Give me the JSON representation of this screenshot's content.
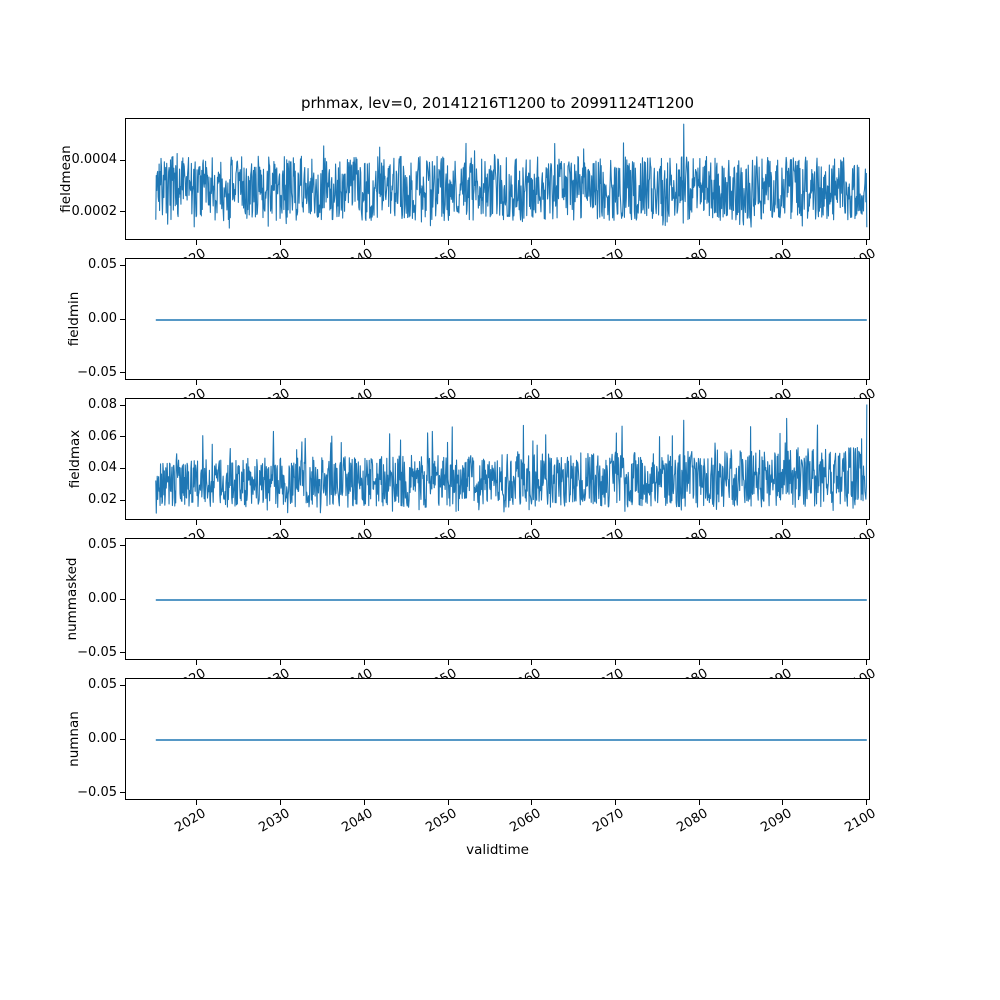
{
  "figure": {
    "background": "#ffffff",
    "line_color": "#1f77b4",
    "axis_color": "#000000"
  },
  "chart_data": {
    "type": "line",
    "title": "prhmax, lev=0, 20141216T1200 to 20991124T1200",
    "xlabel": "validtime",
    "x_range": [
      2014.96,
      2099.9
    ],
    "xlim": [
      2011.4,
      2100.4
    ],
    "xticks": [
      2020,
      2030,
      2040,
      2050,
      2060,
      2070,
      2080,
      2090,
      2100
    ],
    "xtick_labels": [
      "2020",
      "2030",
      "2040",
      "2050",
      "2060",
      "2070",
      "2080",
      "2090",
      "2100"
    ],
    "xtick_rotation": 30,
    "grid": false,
    "legend": false,
    "subplots": [
      {
        "ylabel": "fieldmean",
        "ylim": [
          9e-05,
          0.000565
        ],
        "yticks": [
          0.0002,
          0.0004
        ],
        "ytick_labels": [
          "0.0002",
          "0.0004"
        ],
        "series": {
          "kind": "noise",
          "n": 1500,
          "seed": 7,
          "band_low": 0.00017,
          "band_high": 0.00042,
          "band_high_end": 0.00042,
          "spike_prob": 0.004,
          "spike_high": 0.00048,
          "spike_high_end": 0.0005,
          "dip_prob": 0.012,
          "dip_low": 0.00014,
          "extra_peaks": [
            [
              2078,
              0.000545
            ],
            [
              2052,
              0.00047
            ],
            [
              2035,
              0.00046
            ]
          ],
          "end_value": null,
          "summary": "dense noisy signal oscillating roughly between 0.00015 and 0.00045, occasional peaks, tallest ~0.00055 near 2078"
        }
      },
      {
        "ylabel": "fieldmin",
        "ylim": [
          -0.0565,
          0.0565
        ],
        "yticks": [
          -0.05,
          0,
          0.05
        ],
        "ytick_labels": [
          "−0.05",
          "0.00",
          "0.05"
        ],
        "series": {
          "kind": "constant",
          "value": 0,
          "summary": "constant 0.00 across full time range 2015-2100"
        }
      },
      {
        "ylabel": "fieldmax",
        "ylim": [
          0.0074,
          0.0845
        ],
        "yticks": [
          0.02,
          0.04,
          0.06,
          0.08
        ],
        "ytick_labels": [
          "0.02",
          "0.04",
          "0.06",
          "0.08"
        ],
        "series": {
          "kind": "noise",
          "n": 1500,
          "seed": 13,
          "band_low": 0.016,
          "band_high": 0.046,
          "band_high_end": 0.054,
          "spike_prob": 0.014,
          "spike_high": 0.062,
          "spike_high_end": 0.075,
          "dip_prob": 0.01,
          "dip_low": 0.012,
          "extra_peaks": [
            [
              2029,
              0.064
            ],
            [
              2036,
              0.061
            ],
            [
              2048,
              0.064
            ],
            [
              2060,
              0.058
            ],
            [
              2070,
              0.063
            ],
            [
              2078,
              0.071
            ],
            [
              2086,
              0.067
            ],
            [
              2094,
              0.068
            ]
          ],
          "end_value": 0.081,
          "summary": "dense noisy signal mostly 0.015-0.05, spike amplitude grows with time reaching ~0.07-0.08 after 2070, maximum ~0.081 at 2100"
        }
      },
      {
        "ylabel": "nummasked",
        "ylim": [
          -0.0565,
          0.0565
        ],
        "yticks": [
          -0.05,
          0,
          0.05
        ],
        "ytick_labels": [
          "−0.05",
          "0.00",
          "0.05"
        ],
        "series": {
          "kind": "constant",
          "value": 0,
          "summary": "constant 0.00 across full time range 2015-2100"
        }
      },
      {
        "ylabel": "numnan",
        "ylim": [
          -0.0565,
          0.0565
        ],
        "yticks": [
          -0.05,
          0,
          0.05
        ],
        "ytick_labels": [
          "−0.05",
          "0.00",
          "0.05"
        ],
        "series": {
          "kind": "constant",
          "value": 0,
          "summary": "constant 0.00 across full time range 2015-2100"
        }
      }
    ]
  }
}
